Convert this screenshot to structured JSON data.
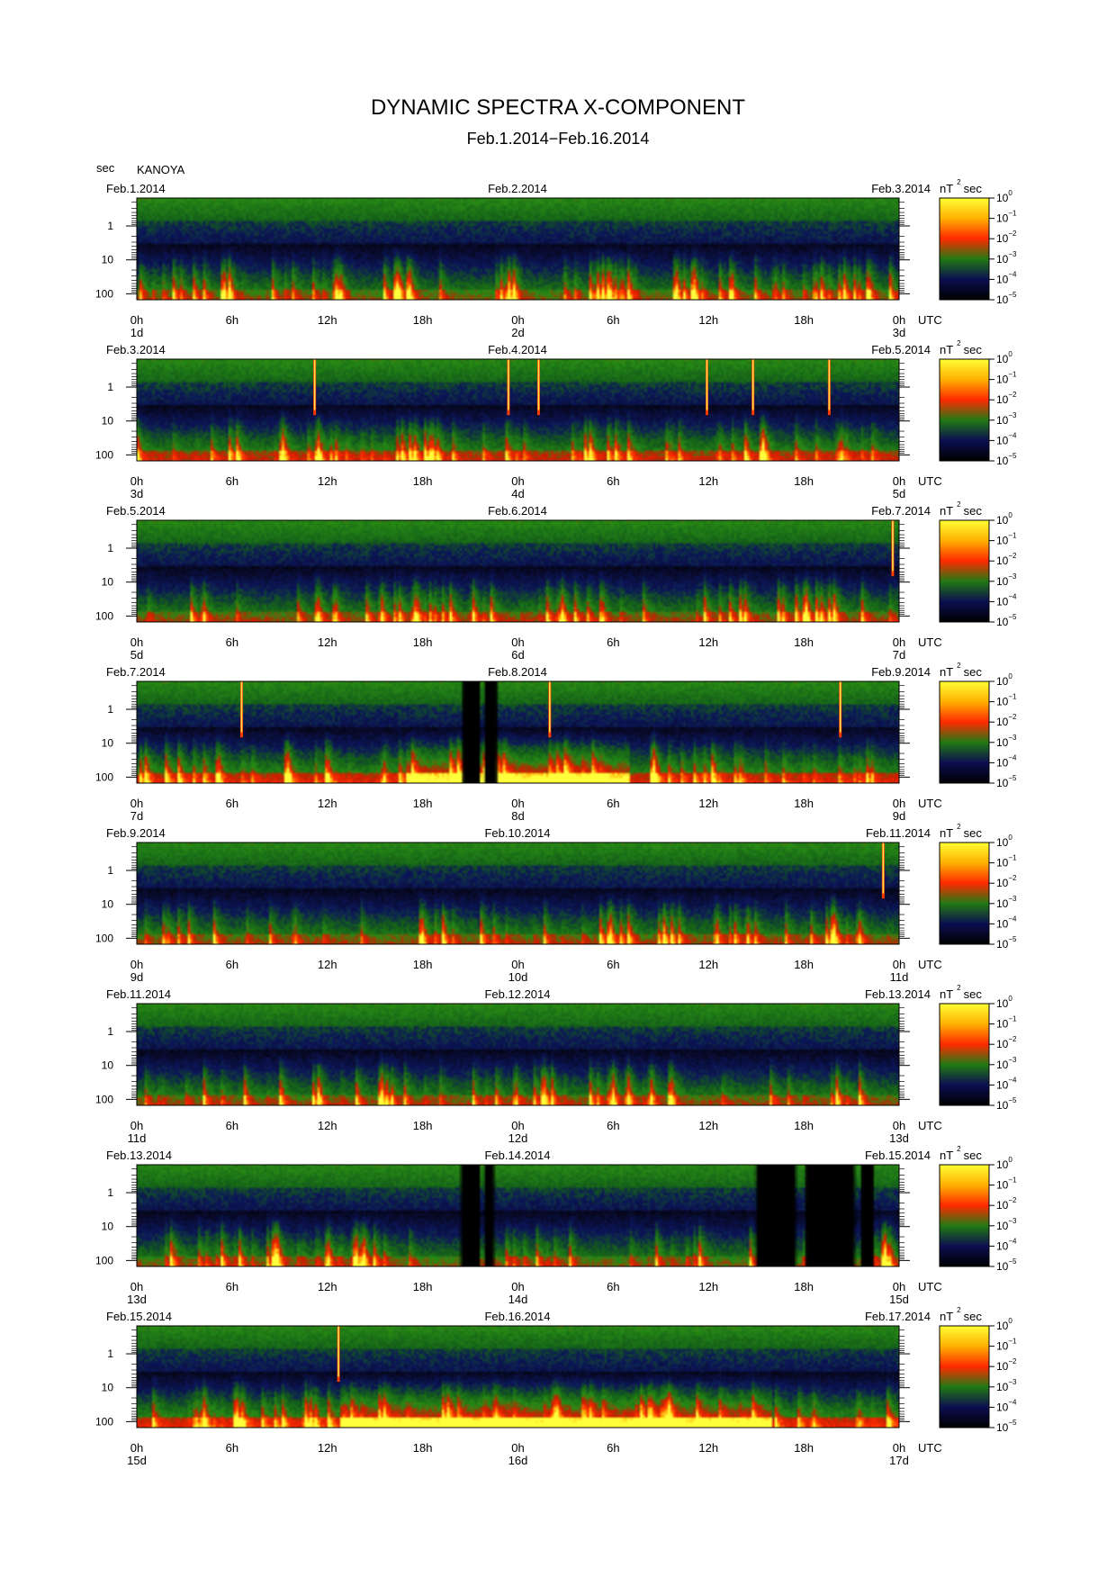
{
  "chart_data": {
    "type": "heatmap",
    "title": "DYNAMIC SPECTRA X-COMPONENT",
    "subtitle": "Feb.1.2014−Feb.16.2014",
    "station": "KANOYA",
    "y_unit": "sec",
    "y_scale": "log",
    "y_ticks": [
      "1",
      "10",
      "100"
    ],
    "x_ticks": [
      "0h",
      "6h",
      "12h",
      "18h",
      "0h",
      "6h",
      "12h",
      "18h",
      "0h"
    ],
    "x_unit": "UTC",
    "colorbar": {
      "unit": "nT",
      "unit_sup": "2",
      "unit_suffix": "sec",
      "scale": "log",
      "labels": [
        {
          "base": "10",
          "exp": "0"
        },
        {
          "base": "10",
          "exp": "−1"
        },
        {
          "base": "10",
          "exp": "−2"
        },
        {
          "base": "10",
          "exp": "−3"
        },
        {
          "base": "10",
          "exp": "−4"
        },
        {
          "base": "10",
          "exp": "−5"
        }
      ],
      "colors": [
        "#ffff33",
        "#ffb000",
        "#ff2a00",
        "#227a14",
        "#0b0e50",
        "#000000"
      ]
    },
    "panels": [
      {
        "dates": [
          "Feb.1.2014",
          "Feb.2.2014",
          "Feb.3.2014"
        ],
        "days": [
          "1d",
          "2d",
          "3d"
        ],
        "activity": 0.5,
        "spikes": [],
        "gaps": [],
        "storm": []
      },
      {
        "dates": [
          "Feb.3.2014",
          "Feb.4.2014",
          "Feb.5.2014"
        ],
        "days": [
          "3d",
          "4d",
          "5d"
        ],
        "activity": 0.65,
        "spikes": [
          11.2,
          23.4,
          25.3,
          35.9,
          38.8,
          43.6
        ],
        "gaps": [],
        "storm": []
      },
      {
        "dates": [
          "Feb.5.2014",
          "Feb.6.2014",
          "Feb.7.2014"
        ],
        "days": [
          "5d",
          "6d",
          "7d"
        ],
        "activity": 0.55,
        "spikes": [
          47.6
        ],
        "gaps": [],
        "storm": []
      },
      {
        "dates": [
          "Feb.7.2014",
          "Feb.8.2014",
          "Feb.9.2014"
        ],
        "days": [
          "7d",
          "8d",
          "9d"
        ],
        "activity": 0.7,
        "spikes": [
          6.6,
          26.0,
          44.3
        ],
        "gaps": [
          [
            20.5,
            21.6
          ],
          [
            21.9,
            22.7
          ]
        ],
        "storm": [
          [
            17.0,
            31.0
          ]
        ]
      },
      {
        "dates": [
          "Feb.9.2014",
          "Feb.10.2014",
          "Feb.11.2014"
        ],
        "days": [
          "9d",
          "10d",
          "11d"
        ],
        "activity": 0.55,
        "spikes": [
          47.0
        ],
        "gaps": [],
        "storm": []
      },
      {
        "dates": [
          "Feb.11.2014",
          "Feb.12.2014",
          "Feb.13.2014"
        ],
        "days": [
          "11d",
          "12d",
          "13d"
        ],
        "activity": 0.55,
        "spikes": [],
        "gaps": [],
        "storm": []
      },
      {
        "dates": [
          "Feb.13.2014",
          "Feb.14.2014",
          "Feb.15.2014"
        ],
        "days": [
          "13d",
          "14d",
          "15d"
        ],
        "activity": 0.5,
        "spikes": [],
        "gaps": [
          [
            20.4,
            21.6
          ],
          [
            21.9,
            22.5
          ],
          [
            39.0,
            41.5
          ],
          [
            42.1,
            45.2
          ],
          [
            45.6,
            46.4
          ]
        ],
        "storm": []
      },
      {
        "dates": [
          "Feb.15.2014",
          "Feb.16.2014",
          "Feb.17.2014"
        ],
        "days": [
          "15d",
          "16d",
          "17d"
        ],
        "activity": 0.75,
        "spikes": [
          12.7
        ],
        "gaps": [],
        "storm": [
          [
            13.0,
            40.0
          ]
        ]
      }
    ]
  }
}
